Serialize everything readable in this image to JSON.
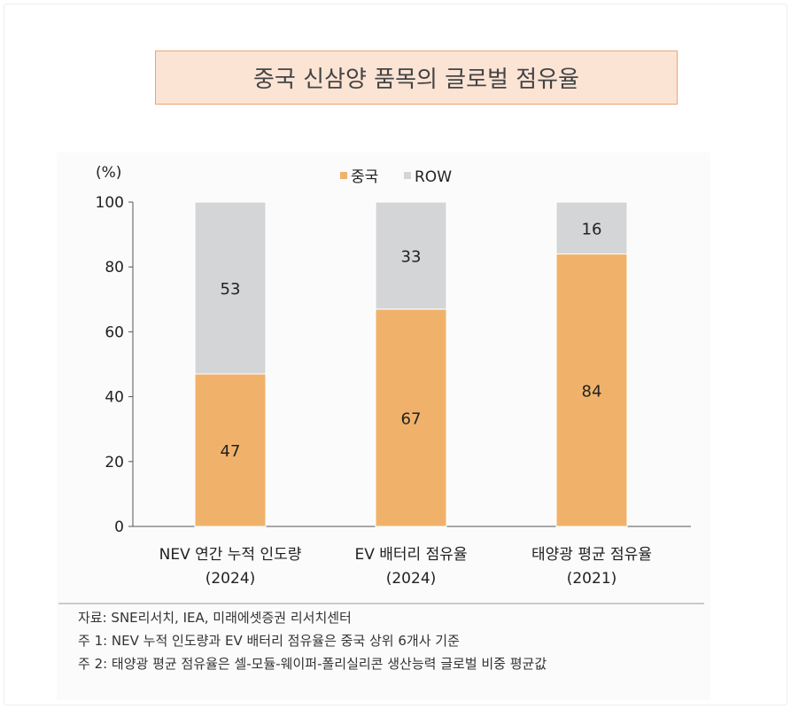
{
  "title": "중국 신삼양 품목의 글로벌 점유율",
  "chart_data": {
    "type": "bar",
    "stacked": true,
    "ylabel": "(%)",
    "ylim": [
      0,
      100
    ],
    "yticks": [
      0,
      20,
      40,
      60,
      80,
      100
    ],
    "categories": [
      [
        "NEV 연간 누적 인도량",
        "(2024)"
      ],
      [
        "EV 배터리 점유율",
        "(2024)"
      ],
      [
        "태양광 평균 점유율",
        "(2021)"
      ]
    ],
    "series": [
      {
        "name": "중국",
        "values": [
          47,
          67,
          84
        ],
        "color": "#F0B26A"
      },
      {
        "name": "ROW",
        "values": [
          53,
          33,
          16
        ],
        "color": "#D4D5D7"
      }
    ],
    "legend": "top-center",
    "grid": false
  },
  "notes": [
    "자료: SNE리서치, IEA, 미래에셋증권 리서치센터",
    "주 1: NEV 누적 인도량과 EV 배터리 점유율은 중국 상위 6개사 기준",
    "주 2: 태양광 평균 점유율은 셀-모듈-웨이퍼-폴리실리콘 생산능력 글로벌 비중 평균값"
  ]
}
